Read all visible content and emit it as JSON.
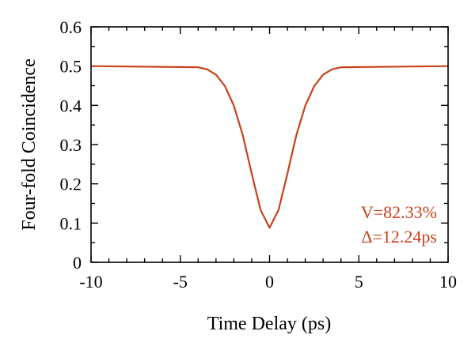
{
  "chart_data": {
    "type": "line",
    "title": "",
    "xlabel": "Time Delay (ps)",
    "ylabel": "Four-fold Coincidence",
    "xlim": [
      -10,
      10
    ],
    "ylim": [
      0,
      0.6
    ],
    "xticks": [
      -10,
      -5,
      0,
      5,
      10
    ],
    "xtick_labels": [
      "-10",
      "-5",
      "0",
      "5",
      "10"
    ],
    "yticks": [
      0,
      0.1,
      0.2,
      0.3,
      0.4,
      0.5,
      0.6
    ],
    "ytick_labels": [
      "0",
      "0.1",
      "0.2",
      "0.3",
      "0.4",
      "0.5",
      "0.6"
    ],
    "grid": false,
    "legend": null,
    "series": [
      {
        "color": "#c8401a",
        "x": [
          -10,
          -4,
          -3.5,
          -3,
          -2.5,
          -2,
          -1.5,
          -1,
          -0.5,
          0,
          0.5,
          1,
          1.5,
          2,
          2.5,
          3,
          3.5,
          4,
          10
        ],
        "y": [
          0.5,
          0.497,
          0.492,
          0.478,
          0.449,
          0.399,
          0.324,
          0.226,
          0.133,
          0.088,
          0.133,
          0.226,
          0.324,
          0.399,
          0.449,
          0.478,
          0.492,
          0.497,
          0.5
        ]
      }
    ],
    "annotations": [
      {
        "text": "V=82.33%",
        "color": "#c8401a"
      },
      {
        "text": "Δ=12.24ps",
        "color": "#c8401a"
      }
    ]
  }
}
